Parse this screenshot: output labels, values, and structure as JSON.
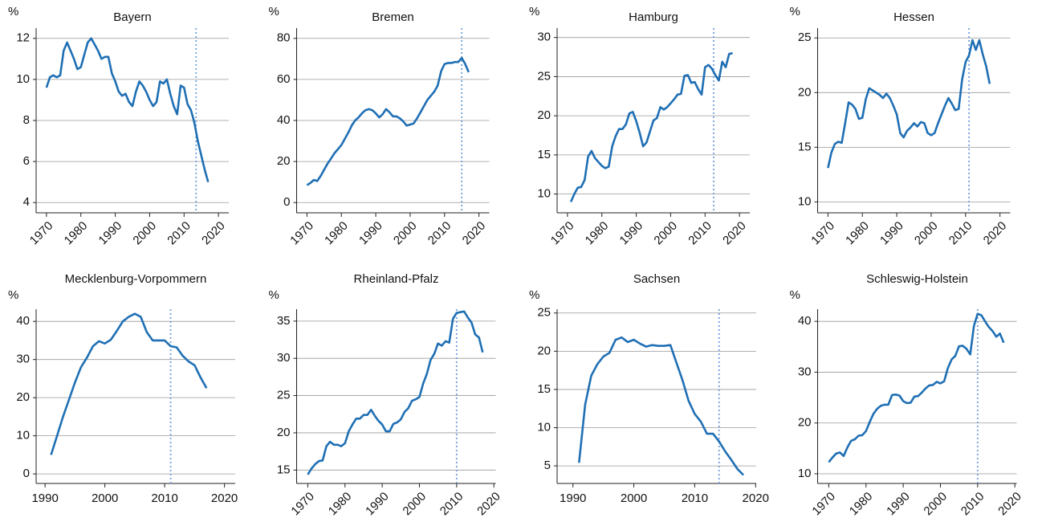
{
  "chart_data": [
    {
      "type": "line",
      "title": "Bayern",
      "y_label": "%",
      "color": "#1f6fb4",
      "vline_color": "#6fa0dc",
      "grid": true,
      "xtick_rotation": 45,
      "x": [
        1970,
        1971,
        1972,
        1973,
        1974,
        1975,
        1976,
        1977,
        1978,
        1979,
        1980,
        1981,
        1982,
        1983,
        1984,
        1985,
        1986,
        1987,
        1988,
        1989,
        1990,
        1991,
        1992,
        1993,
        1994,
        1995,
        1996,
        1997,
        1998,
        1999,
        2000,
        2001,
        2002,
        2003,
        2004,
        2005,
        2006,
        2007,
        2008,
        2009,
        2010,
        2011,
        2012,
        2013,
        2014,
        2015,
        2016,
        2017
      ],
      "values": [
        9.6,
        10.1,
        10.2,
        10.1,
        10.2,
        11.4,
        11.8,
        11.4,
        11.0,
        10.5,
        10.6,
        11.2,
        11.8,
        12.0,
        11.7,
        11.4,
        11.0,
        11.1,
        11.1,
        10.3,
        9.9,
        9.4,
        9.2,
        9.3,
        8.9,
        8.7,
        9.4,
        9.9,
        9.7,
        9.4,
        9.0,
        8.7,
        8.9,
        9.9,
        9.8,
        10.0,
        9.3,
        8.7,
        8.3,
        9.7,
        9.6,
        8.8,
        8.5,
        7.9,
        7.0,
        6.3,
        5.6,
        5.0
      ],
      "vline": 2013.5,
      "xlim": [
        1967,
        2023
      ],
      "xticks": [
        1970,
        1980,
        1990,
        2000,
        2010,
        2020
      ],
      "ylim": [
        3.5,
        12.5
      ],
      "yticks": [
        4,
        6,
        8,
        10,
        12
      ]
    },
    {
      "type": "line",
      "title": "Bremen",
      "y_label": "%",
      "color": "#1f6fb4",
      "vline_color": "#6fa0dc",
      "grid": true,
      "xtick_rotation": 45,
      "x": [
        1970,
        1971,
        1972,
        1973,
        1974,
        1975,
        1976,
        1977,
        1978,
        1979,
        1980,
        1981,
        1982,
        1983,
        1984,
        1985,
        1986,
        1987,
        1988,
        1989,
        1990,
        1991,
        1992,
        1993,
        1994,
        1995,
        1996,
        1997,
        1998,
        1999,
        2000,
        2001,
        2002,
        2003,
        2004,
        2005,
        2006,
        2007,
        2008,
        2009,
        2010,
        2011,
        2012,
        2013,
        2014,
        2015,
        2016,
        2017
      ],
      "values": [
        8.5,
        9.5,
        11,
        10.5,
        13,
        16,
        19,
        21.5,
        24,
        26,
        28,
        31,
        34,
        37.5,
        40,
        41.5,
        43.5,
        45,
        45.5,
        45,
        43.5,
        41.5,
        43,
        45.5,
        44,
        42,
        42,
        41,
        39.5,
        37.5,
        38,
        38.5,
        41,
        44,
        47,
        50,
        52,
        54,
        57,
        64,
        67.5,
        68,
        68,
        68.5,
        68.5,
        70.5,
        67.5,
        63.5
      ],
      "vline": 2015,
      "xlim": [
        1967,
        2023
      ],
      "xticks": [
        1970,
        1980,
        1990,
        2000,
        2010,
        2020
      ],
      "ylim": [
        -5,
        85
      ],
      "yticks": [
        0,
        20,
        40,
        60,
        80
      ]
    },
    {
      "type": "line",
      "title": "Hamburg",
      "y_label": "%",
      "color": "#1f6fb4",
      "vline_color": "#6fa0dc",
      "grid": true,
      "xtick_rotation": 45,
      "x": [
        1971,
        1972,
        1973,
        1974,
        1975,
        1976,
        1977,
        1978,
        1979,
        1980,
        1981,
        1982,
        1983,
        1984,
        1985,
        1986,
        1987,
        1988,
        1989,
        1990,
        1991,
        1992,
        1993,
        1994,
        1995,
        1996,
        1997,
        1998,
        1999,
        2000,
        2001,
        2002,
        2003,
        2004,
        2005,
        2006,
        2007,
        2008,
        2009,
        2010,
        2011,
        2012,
        2013,
        2014,
        2015,
        2016,
        2017,
        2018
      ],
      "values": [
        9,
        10,
        10.8,
        10.9,
        11.8,
        14.8,
        15.5,
        14.6,
        14.1,
        13.6,
        13.3,
        13.5,
        16.1,
        17.4,
        18.3,
        18.3,
        18.9,
        20.3,
        20.5,
        19.3,
        17.8,
        16.1,
        16.6,
        18,
        19.4,
        19.7,
        21.1,
        20.8,
        21.1,
        21.6,
        22.1,
        22.7,
        22.8,
        25.1,
        25.2,
        24.2,
        24.3,
        23.4,
        22.7,
        26.2,
        26.5,
        26,
        25.2,
        24.5,
        26.9,
        26.2,
        27.9,
        28
      ],
      "vline": 2012.5,
      "xlim": [
        1967,
        2023
      ],
      "xticks": [
        1970,
        1980,
        1990,
        2000,
        2010,
        2020
      ],
      "ylim": [
        7.6,
        31.2
      ],
      "yticks": [
        10,
        15,
        20,
        25,
        30
      ]
    },
    {
      "type": "line",
      "title": "Hessen",
      "y_label": "%",
      "color": "#1f6fb4",
      "vline_color": "#6fa0dc",
      "grid": true,
      "xtick_rotation": 45,
      "x": [
        1970,
        1971,
        1972,
        1973,
        1974,
        1975,
        1976,
        1977,
        1978,
        1979,
        1980,
        1981,
        1982,
        1983,
        1984,
        1985,
        1986,
        1987,
        1988,
        1989,
        1990,
        1991,
        1992,
        1993,
        1994,
        1995,
        1996,
        1997,
        1998,
        1999,
        2000,
        2001,
        2002,
        2003,
        2004,
        2005,
        2006,
        2007,
        2008,
        2009,
        2010,
        2011,
        2012,
        2013,
        2014,
        2015,
        2016,
        2017
      ],
      "values": [
        13.1,
        14.5,
        15.3,
        15.5,
        15.4,
        17.2,
        19.1,
        18.9,
        18.5,
        17.6,
        17.7,
        19.4,
        20.4,
        20.2,
        20,
        19.8,
        19.5,
        19.9,
        19.5,
        18.8,
        18,
        16.3,
        15.9,
        16.5,
        16.8,
        17.2,
        16.9,
        17.3,
        17.2,
        16.3,
        16.1,
        16.3,
        17.2,
        18,
        18.8,
        19.5,
        19,
        18.4,
        18.5,
        21.2,
        22.8,
        23.4,
        24.8,
        23.9,
        24.8,
        23.5,
        22.4,
        20.8
      ],
      "vline": 2011,
      "xlim": [
        1967,
        2023
      ],
      "xticks": [
        1970,
        1980,
        1990,
        2000,
        2010,
        2020
      ],
      "ylim": [
        9,
        25.9
      ],
      "yticks": [
        10,
        15,
        20,
        25
      ]
    },
    {
      "type": "line",
      "title": "Mecklenburg-Vorpommern",
      "y_label": "%",
      "color": "#1f6fb4",
      "vline_color": "#6fa0dc",
      "grid": true,
      "xtick_rotation": 0,
      "x": [
        1991,
        1992,
        1993,
        1994,
        1995,
        1996,
        1997,
        1998,
        1999,
        2000,
        2001,
        2002,
        2003,
        2004,
        2005,
        2006,
        2007,
        2008,
        2009,
        2010,
        2011,
        2012,
        2013,
        2014,
        2015,
        2016,
        2017
      ],
      "values": [
        5,
        10,
        15,
        19.5,
        24,
        28,
        30.5,
        33.5,
        34.8,
        34.2,
        35.2,
        37.5,
        40,
        41.2,
        42,
        41.2,
        37.2,
        35,
        35,
        35,
        33.5,
        33.2,
        31,
        29.5,
        28.5,
        25.3,
        22.5
      ],
      "vline": 2011,
      "xlim": [
        1988.5,
        2021.8
      ],
      "xticks": [
        1990,
        2000,
        2010,
        2020
      ],
      "ylim": [
        -2.5,
        43.2
      ],
      "yticks": [
        0,
        10,
        20,
        30,
        40
      ]
    },
    {
      "type": "line",
      "title": "Rheinland-Pfalz",
      "y_label": "%",
      "color": "#1f6fb4",
      "vline_color": "#6fa0dc",
      "grid": true,
      "xtick_rotation": 45,
      "x": [
        1970,
        1971,
        1972,
        1973,
        1974,
        1975,
        1976,
        1977,
        1978,
        1979,
        1980,
        1981,
        1982,
        1983,
        1984,
        1985,
        1986,
        1987,
        1988,
        1989,
        1990,
        1991,
        1992,
        1993,
        1994,
        1995,
        1996,
        1997,
        1998,
        1999,
        2000,
        2001,
        2002,
        2003,
        2004,
        2005,
        2006,
        2007,
        2008,
        2009,
        2010,
        2011,
        2012,
        2013,
        2014,
        2015,
        2016,
        2017
      ],
      "values": [
        14.4,
        15.2,
        15.8,
        16.2,
        16.3,
        18.2,
        18.8,
        18.4,
        18.4,
        18.2,
        18.6,
        20.2,
        21.1,
        21.9,
        21.9,
        22.4,
        22.4,
        23.1,
        22.3,
        21.6,
        21.1,
        20.2,
        20.2,
        21.2,
        21.4,
        21.8,
        22.8,
        23.3,
        24.3,
        24.5,
        24.8,
        26.6,
        27.9,
        29.8,
        30.6,
        32,
        31.7,
        32.3,
        32.1,
        35.3,
        36.1,
        36.2,
        36.3,
        35.5,
        34.8,
        33.2,
        32.8,
        30.8
      ],
      "vline": 2010,
      "xlim": [
        1967,
        2020.5
      ],
      "xticks": [
        1970,
        1980,
        1990,
        2000,
        2010,
        2020
      ],
      "ylim": [
        13.2,
        36.6
      ],
      "yticks": [
        15,
        20,
        25,
        30,
        35
      ]
    },
    {
      "type": "line",
      "title": "Sachsen",
      "y_label": "%",
      "color": "#1f6fb4",
      "vline_color": "#6fa0dc",
      "grid": true,
      "xtick_rotation": 0,
      "x": [
        1991,
        1992,
        1993,
        1994,
        1995,
        1996,
        1997,
        1998,
        1999,
        2000,
        2001,
        2002,
        2003,
        2004,
        2005,
        2006,
        2007,
        2008,
        2009,
        2010,
        2011,
        2012,
        2013,
        2014,
        2015,
        2016,
        2017,
        2018
      ],
      "values": [
        5.4,
        13,
        16.8,
        18.3,
        19.3,
        19.8,
        21.5,
        21.8,
        21.2,
        21.5,
        21,
        20.6,
        20.8,
        20.7,
        20.7,
        20.8,
        18.5,
        16.2,
        13.5,
        11.8,
        10.8,
        9.2,
        9.2,
        8.2,
        6.9,
        5.8,
        4.6,
        3.8
      ],
      "vline": 2014,
      "xlim": [
        1987.4,
        2020.1
      ],
      "xticks": [
        1990,
        2000,
        2010,
        2020
      ],
      "ylim": [
        2.7,
        25.5
      ],
      "yticks": [
        5,
        10,
        15,
        20,
        25
      ]
    },
    {
      "type": "line",
      "title": "Schleswig-Holstein",
      "y_label": "%",
      "color": "#1f6fb4",
      "vline_color": "#6fa0dc",
      "grid": true,
      "xtick_rotation": 45,
      "x": [
        1970,
        1971,
        1972,
        1973,
        1974,
        1975,
        1976,
        1977,
        1978,
        1979,
        1980,
        1981,
        1982,
        1983,
        1984,
        1985,
        1986,
        1987,
        1988,
        1989,
        1990,
        1991,
        1992,
        1993,
        1994,
        1995,
        1996,
        1997,
        1998,
        1999,
        2000,
        2001,
        2002,
        2003,
        2004,
        2005,
        2006,
        2007,
        2008,
        2009,
        2010,
        2011,
        2012,
        2013,
        2014,
        2015,
        2016,
        2017
      ],
      "values": [
        12.3,
        13.2,
        14,
        14.2,
        13.5,
        15.2,
        16.5,
        16.8,
        17.5,
        17.6,
        18.4,
        20.2,
        21.8,
        22.8,
        23.4,
        23.6,
        23.6,
        25.5,
        25.6,
        25.4,
        24.3,
        23.9,
        24,
        25.2,
        25.3,
        26,
        26.8,
        27.4,
        27.5,
        28.1,
        27.8,
        28.2,
        30.8,
        32.5,
        33.2,
        35.1,
        35.2,
        34.6,
        33.5,
        39.1,
        41.5,
        41.2,
        40,
        38.9,
        38.1,
        37,
        37.6,
        35.8
      ],
      "vline": 2010,
      "xlim": [
        1967,
        2020.5
      ],
      "xticks": [
        1970,
        1980,
        1990,
        2000,
        2010,
        2020
      ],
      "ylim": [
        8.1,
        42.4
      ],
      "yticks": [
        10,
        20,
        30,
        40
      ]
    }
  ]
}
